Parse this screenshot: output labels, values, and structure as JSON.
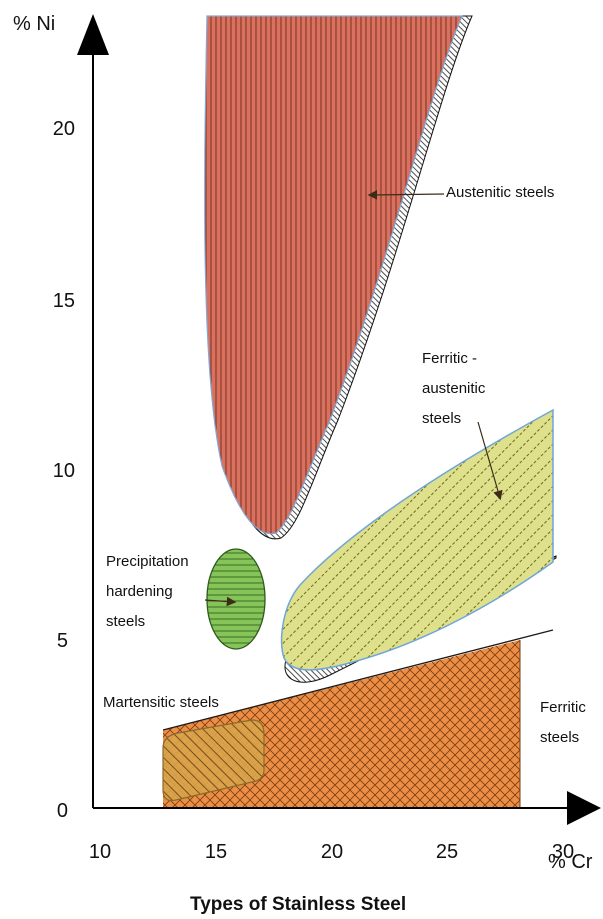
{
  "chart_data": {
    "type": "area",
    "caption": "Types of Stainless Steel",
    "x_axis": {
      "label": "% Cr",
      "ticks": [
        10,
        15,
        20,
        25,
        30
      ],
      "range": [
        10,
        30
      ]
    },
    "y_axis": {
      "label": "% Ni",
      "ticks": [
        0,
        5,
        10,
        15,
        20
      ],
      "range": [
        0,
        23
      ]
    },
    "regions": [
      {
        "name": "Austenitic steels",
        "label_lines": [
          "Austenitic steels"
        ],
        "color": "#d9715e",
        "hatch": "vertical"
      },
      {
        "name": "Ferritic - austenitic steels",
        "label_lines": [
          "Ferritic -",
          "austenitic",
          "steels"
        ],
        "color": "#dfe08c",
        "hatch": "diagonal"
      },
      {
        "name": "Precipitation hardening steels",
        "label_lines": [
          "Precipitation",
          "hardening",
          "steels"
        ],
        "color": "#86c45a",
        "hatch": "horizontal"
      },
      {
        "name": "Martensitic steels",
        "label_lines": [
          "Martensitic steels"
        ],
        "color": "#d9a44a",
        "hatch": "diagonal"
      },
      {
        "name": "Ferritic steels",
        "label_lines": [
          "Ferritic",
          "steels"
        ],
        "color": "#ec8e45",
        "hatch": "crosshatch"
      }
    ]
  }
}
